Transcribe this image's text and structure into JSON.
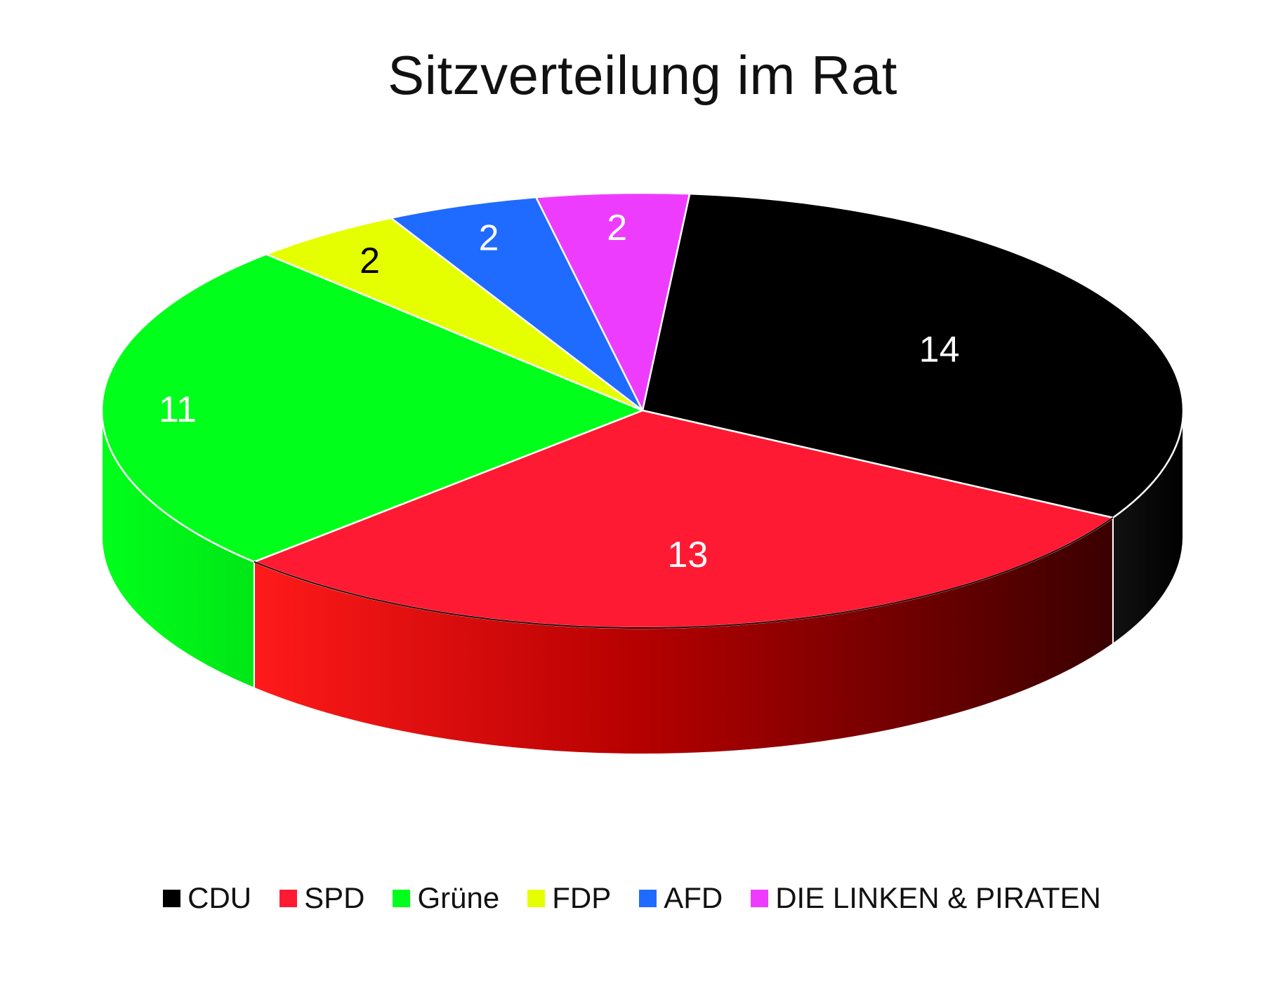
{
  "chart_data": {
    "type": "pie",
    "title": "Sitzverteilung im Rat",
    "categories": [
      "CDU",
      "SPD",
      "Grüne",
      "FDP",
      "AFD",
      "DIE LINKEN & PIRATEN"
    ],
    "values": [
      14,
      13,
      11,
      2,
      2,
      2
    ],
    "colors": [
      "#000000",
      "#ff1a33",
      "#00ff1a",
      "#e6ff00",
      "#1f6bff",
      "#ee3cff"
    ],
    "label_colors": [
      "#ffffff",
      "#ffffff",
      "#ffffff",
      "#000000",
      "#ffffff",
      "#ffffff"
    ],
    "style": "3d",
    "legend_position": "bottom"
  }
}
